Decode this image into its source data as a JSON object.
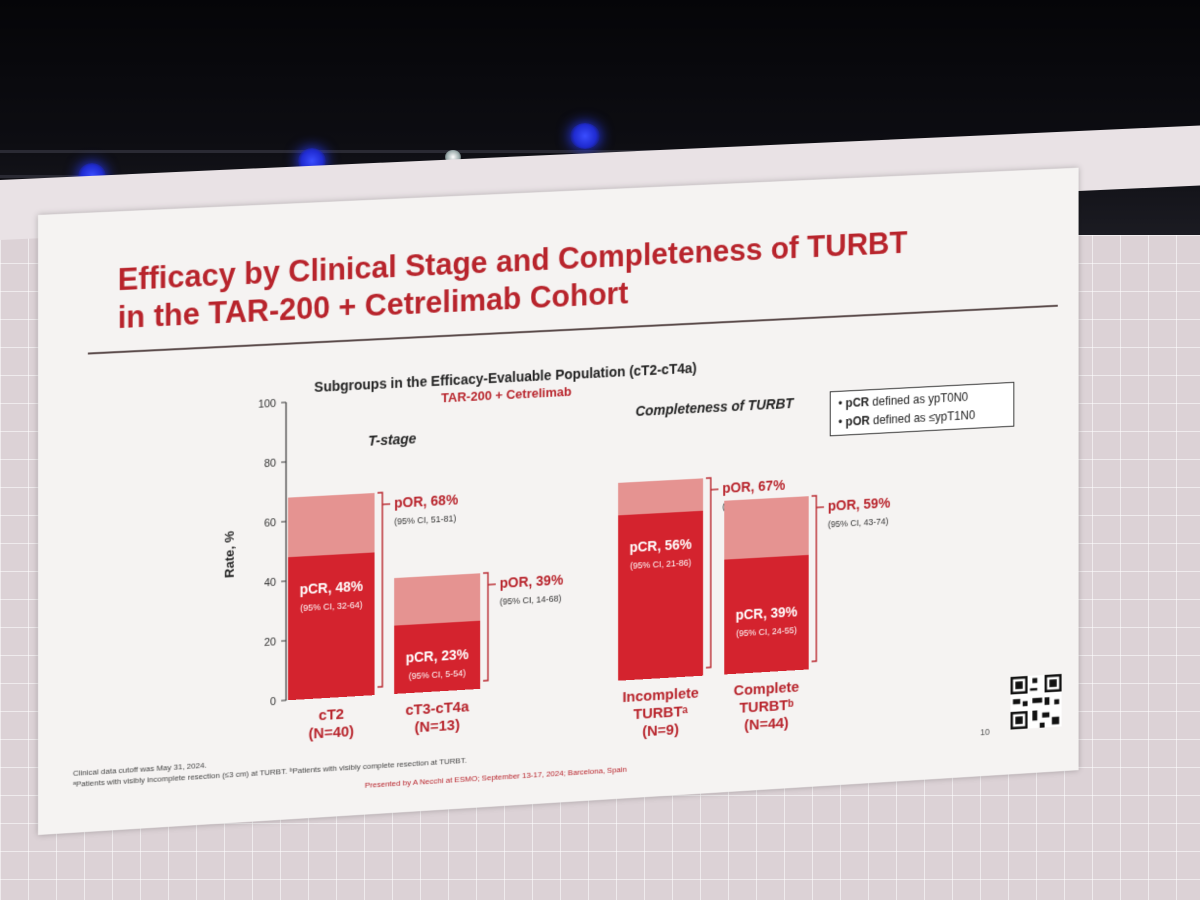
{
  "slide": {
    "title_line1": "Efficacy by Clinical Stage and Completeness of TURBT",
    "title_line2": "in the TAR-200 + Cetrelimab Cohort",
    "page_number": "10",
    "footnote_line1": "Clinical data cutoff was May 31, 2024.",
    "footnote_line2": "ᵃPatients with visibly incomplete resection (≤3 cm) at TURBT. ᵇPatients with visibly complete resection at TURBT.",
    "presented_by": "Presented by A Necchi at ESMO; September 13-17, 2024; Barcelona, Spain"
  },
  "legend": {
    "pcr_label": "pCR",
    "pcr_text": "defined as ypT0N0",
    "por_label": "pOR",
    "por_text": "defined as ≤ypT1N0"
  },
  "colors": {
    "title_red": "#b8242c",
    "pcr_bar": "#d4232e",
    "por_bar": "#e59391",
    "bracket": "#b8242c"
  },
  "chart_data": {
    "type": "bar",
    "title": "Subgroups in the Efficacy-Evaluable Population (cT2-cT4a)",
    "subtitle": "TAR-200 + Cetrelimab",
    "ylabel": "Rate, %",
    "ylim": [
      0,
      100
    ],
    "yticks": [
      "0",
      "20",
      "40",
      "60",
      "80",
      "100"
    ],
    "group_labels": [
      "T-stage",
      "Completeness of TURBT"
    ],
    "categories": [
      {
        "line1": "cT2",
        "line2": "(N=40)",
        "line3": ""
      },
      {
        "line1": "cT3-cT4a",
        "line2": "(N=13)",
        "line3": ""
      },
      {
        "line1": "Incomplete",
        "line2": "TURBTᵃ",
        "line3": "(N=9)"
      },
      {
        "line1": "Complete",
        "line2": "TURBTᵇ",
        "line3": "(N=44)"
      }
    ],
    "series": [
      {
        "name": "pCR",
        "values": [
          48,
          23,
          56,
          39
        ]
      },
      {
        "name": "pOR",
        "values": [
          68,
          39,
          67,
          59
        ]
      }
    ],
    "pcr_labels": [
      "pCR, 48%",
      "pCR, 23%",
      "pCR, 56%",
      "pCR, 39%"
    ],
    "pcr_ci": [
      "(95% CI, 32-64)",
      "(95% CI, 5-54)",
      "(95% CI, 21-86)",
      "(95% CI, 24-55)"
    ],
    "por_labels": [
      "pOR, 68%",
      "pOR, 39%",
      "pOR, 67%",
      "pOR, 59%"
    ],
    "por_ci": [
      "(95% CI, 51-81)",
      "(95% CI, 14-68)",
      "(95% CI, 30-93)",
      "(95% CI, 43-74)"
    ]
  }
}
